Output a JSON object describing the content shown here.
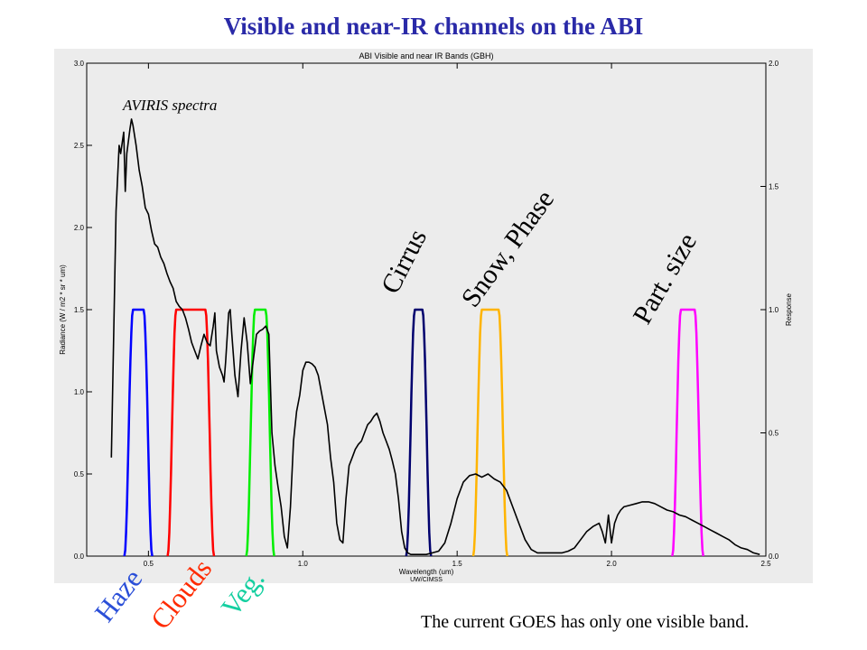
{
  "slide": {
    "title": "Visible and near-IR channels on the ABI",
    "footnote": "The current GOES has only one visible band."
  },
  "annotations": {
    "aviris": "AVIRIS spectra",
    "cirrus": "Cirrus",
    "snow_phase": "Snow, Phase",
    "part_size": "Part. size",
    "haze": "Haze",
    "clouds": "Clouds",
    "veg": "Veg."
  },
  "chart_data": {
    "type": "line",
    "title": "ABI Visible and near IR Bands (GBH)",
    "xlabel": "Wavelength (um)",
    "xlabel_sub": "UW/CIMSS",
    "ylabel": "Radiance (W / m2 * sr * um)",
    "y2label": "Response",
    "xlim": [
      0.3,
      2.5
    ],
    "ylim": [
      0,
      3.0
    ],
    "y2lim": [
      0,
      2.0
    ],
    "x_ticks": [
      {
        "value": 0.5,
        "label": "0.5"
      },
      {
        "value": 1.0,
        "label": "1.0"
      },
      {
        "value": 1.5,
        "label": "1.5"
      },
      {
        "value": 2.0,
        "label": "2.0"
      },
      {
        "value": 2.5,
        "label": "2.5"
      }
    ],
    "y_ticks": [
      {
        "value": 0.0,
        "label": "0.0"
      },
      {
        "value": 0.5,
        "label": "0.5"
      },
      {
        "value": 1.0,
        "label": "1.0"
      },
      {
        "value": 1.5,
        "label": "1.5"
      },
      {
        "value": 2.0,
        "label": "2.0"
      },
      {
        "value": 2.5,
        "label": "2.5"
      },
      {
        "value": 3.0,
        "label": "3.0"
      }
    ],
    "y2_ticks": [
      {
        "value": 0.0,
        "label": "0.0"
      },
      {
        "value": 0.5,
        "label": "0.5"
      },
      {
        "value": 1.0,
        "label": "1.0"
      },
      {
        "value": 1.5,
        "label": "1.5"
      },
      {
        "value": 2.0,
        "label": "2.0"
      }
    ],
    "spectrum": {
      "color": "#000000",
      "x": [
        0.38,
        0.395,
        0.405,
        0.41,
        0.42,
        0.425,
        0.43,
        0.44,
        0.445,
        0.45,
        0.46,
        0.47,
        0.48,
        0.49,
        0.5,
        0.51,
        0.52,
        0.53,
        0.54,
        0.55,
        0.56,
        0.57,
        0.58,
        0.59,
        0.6,
        0.61,
        0.62,
        0.63,
        0.64,
        0.65,
        0.66,
        0.67,
        0.68,
        0.69,
        0.7,
        0.71,
        0.715,
        0.72,
        0.73,
        0.74,
        0.745,
        0.75,
        0.76,
        0.765,
        0.77,
        0.78,
        0.79,
        0.8,
        0.81,
        0.82,
        0.83,
        0.84,
        0.85,
        0.86,
        0.87,
        0.88,
        0.89,
        0.9,
        0.91,
        0.92,
        0.93,
        0.94,
        0.95,
        0.96,
        0.97,
        0.98,
        0.99,
        1.0,
        1.01,
        1.02,
        1.03,
        1.04,
        1.05,
        1.06,
        1.07,
        1.08,
        1.09,
        1.1,
        1.11,
        1.12,
        1.13,
        1.14,
        1.15,
        1.16,
        1.17,
        1.18,
        1.19,
        1.2,
        1.21,
        1.22,
        1.23,
        1.24,
        1.25,
        1.26,
        1.27,
        1.28,
        1.29,
        1.3,
        1.31,
        1.32,
        1.33,
        1.34,
        1.35,
        1.36,
        1.38,
        1.4,
        1.42,
        1.44,
        1.46,
        1.48,
        1.5,
        1.52,
        1.54,
        1.56,
        1.58,
        1.6,
        1.62,
        1.64,
        1.66,
        1.68,
        1.7,
        1.72,
        1.74,
        1.76,
        1.78,
        1.8,
        1.82,
        1.84,
        1.86,
        1.88,
        1.9,
        1.92,
        1.94,
        1.96,
        1.97,
        1.98,
        1.99,
        2.0,
        2.01,
        2.02,
        2.03,
        2.04,
        2.06,
        2.08,
        2.1,
        2.12,
        2.14,
        2.16,
        2.18,
        2.2,
        2.22,
        2.24,
        2.26,
        2.28,
        2.3,
        2.32,
        2.34,
        2.36,
        2.38,
        2.4,
        2.42,
        2.44,
        2.46,
        2.48
      ],
      "y": [
        0.6,
        2.1,
        2.5,
        2.45,
        2.58,
        2.22,
        2.45,
        2.6,
        2.66,
        2.62,
        2.5,
        2.35,
        2.25,
        2.12,
        2.08,
        1.98,
        1.9,
        1.88,
        1.82,
        1.78,
        1.72,
        1.67,
        1.63,
        1.55,
        1.52,
        1.5,
        1.45,
        1.38,
        1.3,
        1.25,
        1.2,
        1.28,
        1.35,
        1.3,
        1.28,
        1.4,
        1.48,
        1.25,
        1.15,
        1.1,
        1.06,
        1.18,
        1.48,
        1.5,
        1.35,
        1.1,
        0.97,
        1.25,
        1.45,
        1.3,
        1.05,
        1.2,
        1.35,
        1.37,
        1.38,
        1.4,
        1.35,
        0.75,
        0.55,
        0.42,
        0.3,
        0.12,
        0.05,
        0.3,
        0.7,
        0.88,
        0.98,
        1.13,
        1.18,
        1.18,
        1.17,
        1.15,
        1.1,
        1.0,
        0.9,
        0.8,
        0.6,
        0.45,
        0.2,
        0.1,
        0.08,
        0.35,
        0.55,
        0.6,
        0.65,
        0.68,
        0.7,
        0.75,
        0.8,
        0.82,
        0.85,
        0.87,
        0.82,
        0.75,
        0.7,
        0.65,
        0.58,
        0.5,
        0.35,
        0.15,
        0.05,
        0.02,
        0.01,
        0.01,
        0.01,
        0.01,
        0.02,
        0.03,
        0.08,
        0.2,
        0.35,
        0.45,
        0.49,
        0.5,
        0.48,
        0.5,
        0.47,
        0.45,
        0.4,
        0.3,
        0.2,
        0.1,
        0.04,
        0.02,
        0.02,
        0.02,
        0.02,
        0.02,
        0.03,
        0.05,
        0.1,
        0.15,
        0.18,
        0.2,
        0.15,
        0.08,
        0.25,
        0.08,
        0.2,
        0.25,
        0.28,
        0.3,
        0.31,
        0.32,
        0.33,
        0.33,
        0.32,
        0.3,
        0.28,
        0.27,
        0.25,
        0.24,
        0.22,
        0.2,
        0.18,
        0.16,
        0.14,
        0.12,
        0.1,
        0.07,
        0.05,
        0.04,
        0.02,
        0.01
      ]
    },
    "bands": [
      {
        "color": "#0000ff",
        "center": 0.47,
        "width": 0.04,
        "peak": 1.0
      },
      {
        "color": "#ff0000",
        "center": 0.64,
        "width": 0.1,
        "peak": 1.0
      },
      {
        "color": "#00ee00",
        "center": 0.865,
        "width": 0.04,
        "peak": 1.0
      },
      {
        "color": "#00006e",
        "center": 1.378,
        "width": 0.03,
        "peak": 1.0
      },
      {
        "color": "#ffb400",
        "center": 1.61,
        "width": 0.06,
        "peak": 1.0
      },
      {
        "color": "#ff00ff",
        "center": 2.25,
        "width": 0.05,
        "peak": 1.0
      }
    ]
  }
}
